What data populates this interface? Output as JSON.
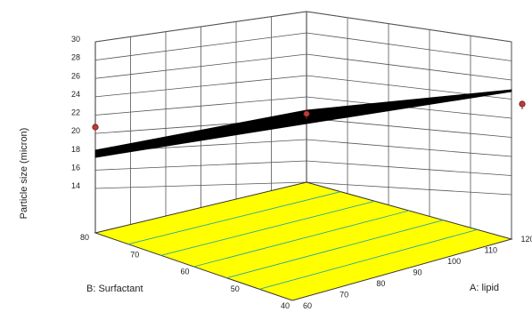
{
  "chart_data": {
    "type": "surface",
    "title": "",
    "zlabel": "Particle size (micron)",
    "xlabel": "A: lipid",
    "ylabel": "B: Surfactant",
    "x_ticks": [
      "60",
      "70",
      "80",
      "90",
      "100",
      "110",
      "120"
    ],
    "y_ticks": [
      "40",
      "50",
      "60",
      "70",
      "80"
    ],
    "z_ticks": [
      "14",
      "16",
      "18",
      "20",
      "22",
      "24",
      "26",
      "28",
      "30"
    ],
    "xlim": [
      60,
      120
    ],
    "ylim": [
      40,
      80
    ],
    "zlim": [
      14,
      30
    ],
    "surface": {
      "corners": [
        {
          "x": 60,
          "y": 40,
          "z": 19.6
        },
        {
          "x": 120,
          "y": 40,
          "z": 22.1
        },
        {
          "x": 120,
          "y": 80,
          "z": 23.6
        },
        {
          "x": 60,
          "y": 80,
          "z": 18.4
        }
      ],
      "color": "#000000"
    },
    "points": [
      {
        "x": 60,
        "y": 80,
        "z": 20.8
      },
      {
        "x": 90,
        "y": 60,
        "z": 21.4
      },
      {
        "x": 120,
        "y": 40,
        "z": 24.0
      }
    ],
    "point_color": "#c03a3a",
    "floor_contour_color": "#ffff00",
    "contour_line_color": "#2aa6a0",
    "grid": true
  }
}
